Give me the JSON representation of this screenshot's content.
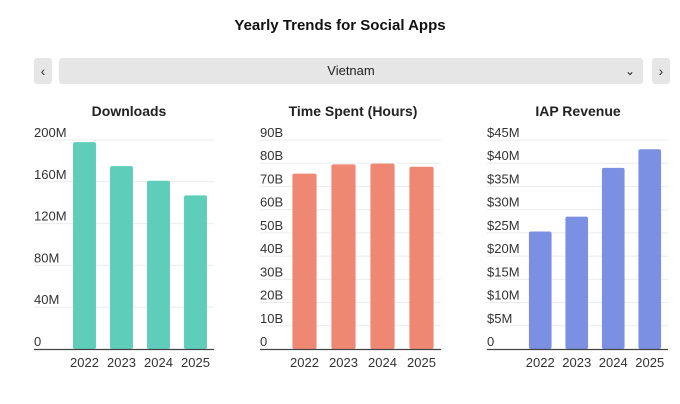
{
  "title": "Yearly Trends for Social Apps",
  "nav": {
    "prev_icon": "chevron-left-icon",
    "next_icon": "chevron-right-icon",
    "prev_glyph": "‹",
    "next_glyph": "›"
  },
  "country_select": {
    "value": "Vietnam",
    "icon": "chevron-down-icon",
    "glyph": "⌄"
  },
  "chart_data": [
    {
      "type": "bar",
      "title": "Downloads",
      "categories": [
        "2022",
        "2023",
        "2024",
        "2025"
      ],
      "values": [
        198,
        175,
        161,
        147
      ],
      "unit": "M",
      "ylim": [
        0,
        200
      ],
      "yticks": [
        0,
        40,
        80,
        120,
        160,
        200
      ],
      "yticklabels": [
        "0",
        "40M",
        "80M",
        "120M",
        "160M",
        "200M"
      ],
      "color": "#5ecdb9",
      "grid": true
    },
    {
      "type": "bar",
      "title": "Time Spent (Hours)",
      "categories": [
        "2022",
        "2023",
        "2024",
        "2025"
      ],
      "values": [
        75.5,
        79.5,
        79.8,
        78.5
      ],
      "unit": "B",
      "ylim": [
        0,
        90
      ],
      "yticks": [
        0,
        10,
        20,
        30,
        40,
        50,
        60,
        70,
        80,
        90
      ],
      "yticklabels": [
        "0",
        "10B",
        "20B",
        "30B",
        "40B",
        "50B",
        "60B",
        "70B",
        "80B",
        "90B"
      ],
      "color": "#ef8873",
      "grid": true
    },
    {
      "type": "bar",
      "title": "IAP Revenue",
      "categories": [
        "2022",
        "2023",
        "2024",
        "2025"
      ],
      "values": [
        25.3,
        28.5,
        39.0,
        43.0
      ],
      "unit": "$M",
      "ylim": [
        0,
        45
      ],
      "yticks": [
        0,
        5,
        10,
        15,
        20,
        25,
        30,
        35,
        40,
        45
      ],
      "yticklabels": [
        "0",
        "$5M",
        "$10M",
        "$15M",
        "$20M",
        "$25M",
        "$30M",
        "$35M",
        "$40M",
        "$45M"
      ],
      "color": "#7b8fe3",
      "grid": true
    }
  ]
}
